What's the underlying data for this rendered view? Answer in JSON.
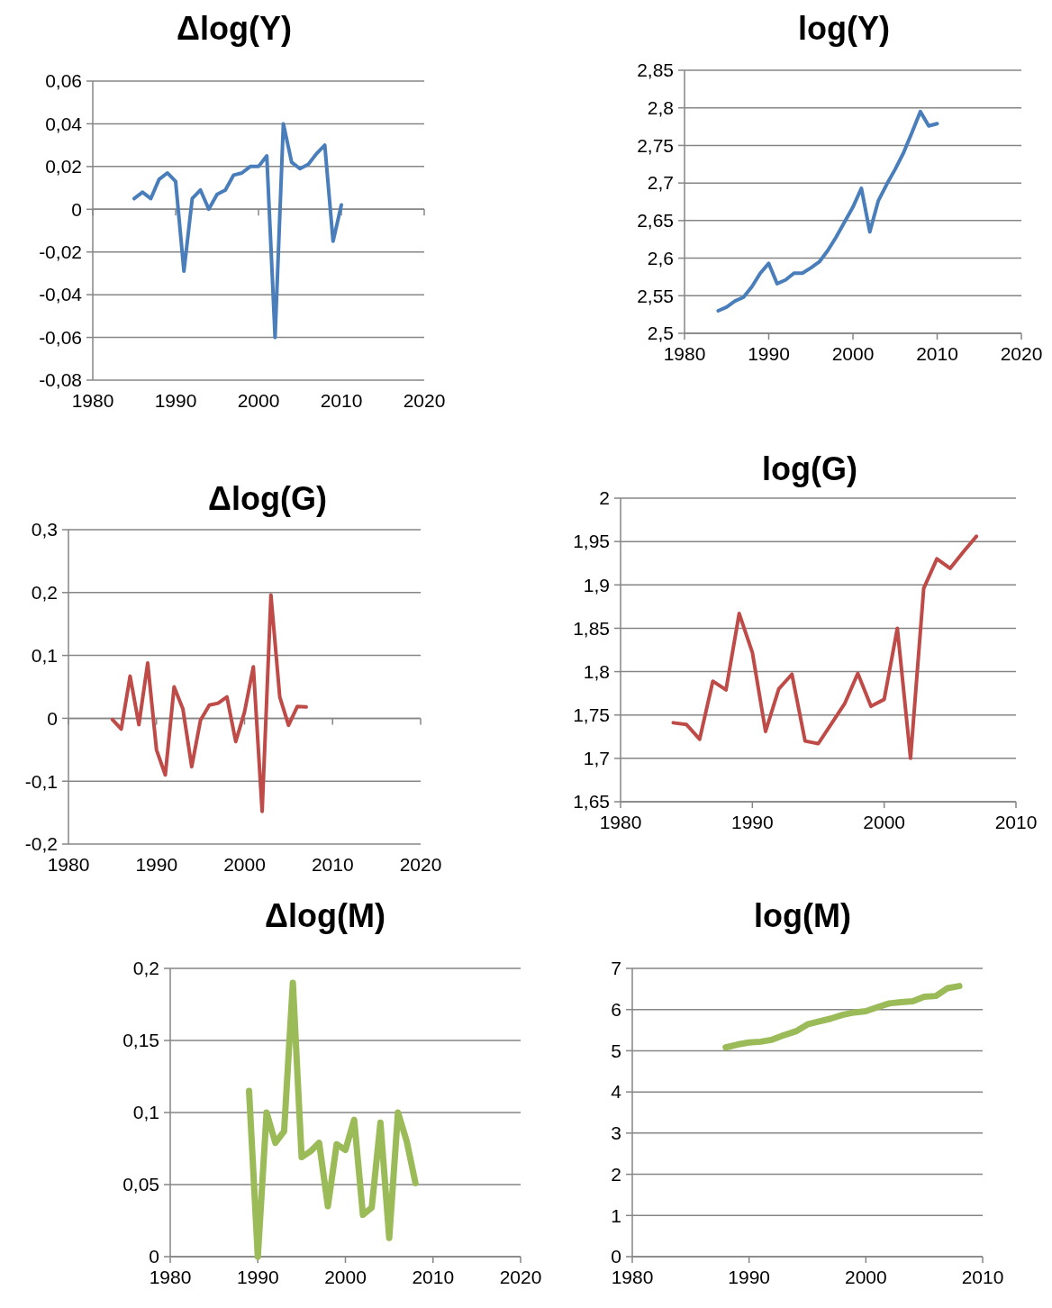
{
  "chart_data": [
    {
      "type": "line",
      "title": "Δlog(Y)",
      "x": [
        1985,
        1986,
        1987,
        1988,
        1989,
        1990,
        1991,
        1992,
        1993,
        1994,
        1995,
        1996,
        1997,
        1998,
        1999,
        2000,
        2001,
        2002,
        2003,
        2004,
        2005,
        2006,
        2007,
        2008,
        2009,
        2010
      ],
      "series": [
        {
          "color": "#4a7ebb",
          "values": [
            0.005,
            0.008,
            0.005,
            0.014,
            0.017,
            0.013,
            -0.029,
            0.005,
            0.009,
            0,
            0.007,
            0.009,
            0.016,
            0.017,
            0.02,
            0.02,
            0.025,
            -0.06,
            0.04,
            0.022,
            0.019,
            0.021,
            0.026,
            0.03,
            -0.015,
            0.002
          ]
        }
      ],
      "xlim": [
        1980,
        2020
      ],
      "xticks": [
        1980,
        1990,
        2000,
        2010,
        2020
      ],
      "ylim": [
        -0.08,
        0.06
      ],
      "yticks": [
        {
          "value": -0.08,
          "label": "-0,08"
        },
        {
          "value": -0.06,
          "label": "-0,06"
        },
        {
          "value": -0.04,
          "label": "-0,04"
        },
        {
          "value": -0.02,
          "label": "-0,02"
        },
        0,
        {
          "value": 0.02,
          "label": "0,02"
        },
        {
          "value": 0.04,
          "label": "0,04"
        },
        {
          "value": 0.06,
          "label": "0,06"
        }
      ],
      "grid": "y"
    },
    {
      "type": "line",
      "title": "log(Y)",
      "x": [
        1984,
        1985,
        1986,
        1987,
        1988,
        1989,
        1990,
        1991,
        1992,
        1993,
        1994,
        1995,
        1996,
        1997,
        1998,
        1999,
        2000,
        2001,
        2002,
        2003,
        2004,
        2005,
        2006,
        2007,
        2008,
        2009,
        2010
      ],
      "series": [
        {
          "color": "#4a7ebb",
          "values": [
            2.53,
            2.535,
            2.543,
            2.548,
            2.562,
            2.58,
            2.593,
            2.566,
            2.571,
            2.58,
            2.58,
            2.587,
            2.595,
            2.61,
            2.628,
            2.648,
            2.668,
            2.693,
            2.635,
            2.676,
            2.698,
            2.718,
            2.74,
            2.767,
            2.795,
            2.776,
            2.779
          ]
        }
      ],
      "xlim": [
        1980,
        2020
      ],
      "xticks": [
        1980,
        1990,
        2000,
        2010,
        2020
      ],
      "ylim": [
        2.5,
        2.85
      ],
      "yticks": [
        {
          "value": 2.5,
          "label": "2,5"
        },
        {
          "value": 2.55,
          "label": "2,55"
        },
        {
          "value": 2.6,
          "label": "2,6"
        },
        {
          "value": 2.65,
          "label": "2,65"
        },
        {
          "value": 2.7,
          "label": "2,7"
        },
        {
          "value": 2.75,
          "label": "2,75"
        },
        {
          "value": 2.8,
          "label": "2,8"
        },
        {
          "value": 2.85,
          "label": "2,85"
        }
      ],
      "grid": "y"
    },
    {
      "type": "line",
      "title": "Δlog(G)",
      "x": [
        1985,
        1986,
        1987,
        1988,
        1989,
        1990,
        1991,
        1992,
        1993,
        1994,
        1995,
        1996,
        1997,
        1998,
        1999,
        2000,
        2001,
        2002,
        2003,
        2004,
        2005,
        2006,
        2007
      ],
      "series": [
        {
          "color": "#be4b48",
          "values": [
            -0.002,
            -0.017,
            0.067,
            -0.01,
            0.088,
            -0.05,
            -0.09,
            0.05,
            0.015,
            -0.077,
            -0.003,
            0.021,
            0.024,
            0.034,
            -0.037,
            0.01,
            0.082,
            -0.148,
            0.196,
            0.034,
            -0.011,
            0.019,
            0.018
          ]
        }
      ],
      "xlim": [
        1980,
        2020
      ],
      "xticks": [
        1980,
        1990,
        2000,
        2010,
        2020
      ],
      "ylim": [
        -0.2,
        0.3
      ],
      "yticks": [
        {
          "value": -0.2,
          "label": "-0,2"
        },
        {
          "value": -0.1,
          "label": "-0,1"
        },
        0,
        {
          "value": 0.1,
          "label": "0,1"
        },
        {
          "value": 0.2,
          "label": "0,2"
        },
        {
          "value": 0.3,
          "label": "0,3"
        }
      ],
      "grid": "y"
    },
    {
      "type": "line",
      "title": "log(G)",
      "x": [
        1984,
        1985,
        1986,
        1987,
        1988,
        1989,
        1990,
        1991,
        1992,
        1993,
        1994,
        1995,
        1996,
        1997,
        1998,
        1999,
        2000,
        2001,
        2002,
        2003,
        2004,
        2005,
        2006,
        2007
      ],
      "series": [
        {
          "color": "#be4b48",
          "values": [
            1.741,
            1.739,
            1.722,
            1.789,
            1.779,
            1.867,
            1.822,
            1.731,
            1.78,
            1.797,
            1.72,
            1.717,
            1.74,
            1.763,
            1.798,
            1.76,
            1.768,
            1.85,
            1.7,
            1.896,
            1.93,
            1.919,
            1.938,
            1.956
          ]
        }
      ],
      "xlim": [
        1980,
        2010
      ],
      "xticks": [
        1980,
        1990,
        2000,
        2010
      ],
      "ylim": [
        1.65,
        2
      ],
      "yticks": [
        {
          "value": 1.65,
          "label": "1,65"
        },
        {
          "value": 1.7,
          "label": "1,7"
        },
        {
          "value": 1.75,
          "label": "1,75"
        },
        {
          "value": 1.8,
          "label": "1,8"
        },
        {
          "value": 1.85,
          "label": "1,85"
        },
        {
          "value": 1.9,
          "label": "1,9"
        },
        {
          "value": 1.95,
          "label": "1,95"
        },
        2
      ],
      "grid": "y"
    },
    {
      "type": "line",
      "title": "Δlog(M)",
      "x": [
        1989,
        1990,
        1991,
        1992,
        1993,
        1994,
        1995,
        1996,
        1997,
        1998,
        1999,
        2000,
        2001,
        2002,
        2003,
        2004,
        2005,
        2006,
        2007,
        2008
      ],
      "series": [
        {
          "color": "#9bbb59",
          "values": [
            0.115,
            0,
            0.1,
            0.079,
            0.087,
            0.19,
            0.069,
            0.073,
            0.079,
            0.035,
            0.078,
            0.074,
            0.095,
            0.029,
            0.034,
            0.093,
            0.013,
            0.1,
            0.08,
            0.051
          ]
        }
      ],
      "xlim": [
        1980,
        2020
      ],
      "xticks": [
        1980,
        1990,
        2000,
        2010,
        2020
      ],
      "ylim": [
        0,
        0.2
      ],
      "yticks": [
        0,
        {
          "value": 0.05,
          "label": "0,05"
        },
        {
          "value": 0.1,
          "label": "0,1"
        },
        {
          "value": 0.15,
          "label": "0,15"
        },
        {
          "value": 0.2,
          "label": "0,2"
        }
      ],
      "grid": "y"
    },
    {
      "type": "line",
      "title": "log(M)",
      "x": [
        1988,
        1989,
        1990,
        1991,
        1992,
        1993,
        1994,
        1995,
        1996,
        1997,
        1998,
        1999,
        2000,
        2001,
        2002,
        2003,
        2004,
        2005,
        2006,
        2007,
        2008
      ],
      "series": [
        {
          "color": "#9bbb59",
          "values": [
            5.08,
            5.15,
            5.2,
            5.22,
            5.27,
            5.38,
            5.47,
            5.64,
            5.71,
            5.78,
            5.87,
            5.93,
            5.96,
            6.06,
            6.15,
            6.18,
            6.2,
            6.31,
            6.33,
            6.52,
            6.57
          ]
        }
      ],
      "xlim": [
        1980,
        2010
      ],
      "xticks": [
        1980,
        1990,
        2000,
        2010
      ],
      "ylim": [
        0,
        7
      ],
      "yticks": [
        0,
        1,
        2,
        3,
        4,
        5,
        6,
        7
      ],
      "grid": "y"
    }
  ]
}
